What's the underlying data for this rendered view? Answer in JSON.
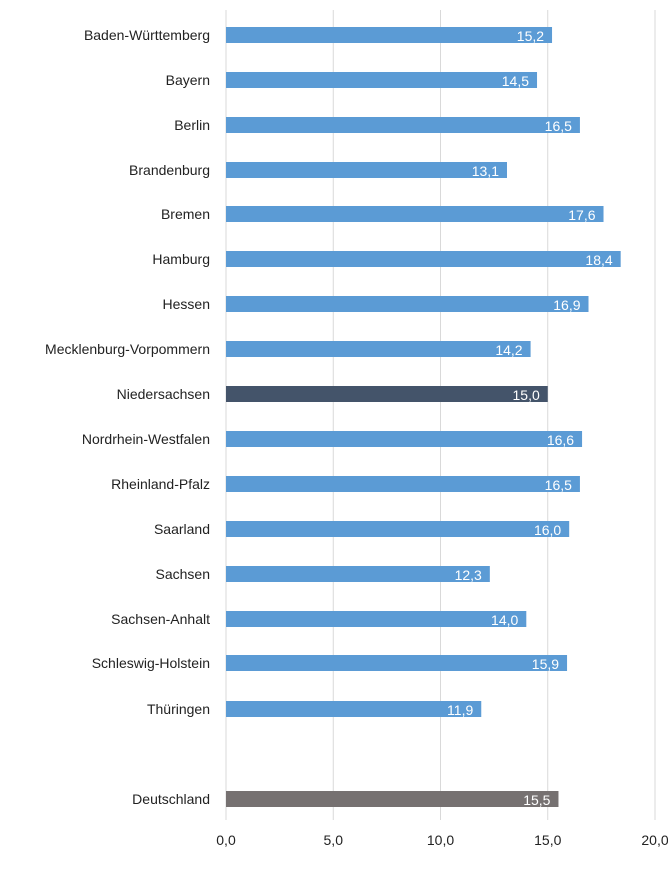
{
  "chart_data": {
    "type": "bar",
    "orientation": "horizontal",
    "categories": [
      "Baden-Württemberg",
      "Bayern",
      "Berlin",
      "Brandenburg",
      "Bremen",
      "Hamburg",
      "Hessen",
      "Mecklenburg-Vorpommern",
      "Niedersachsen",
      "Nordrhein-Westfalen",
      "Rheinland-Pfalz",
      "Saarland",
      "Sachsen",
      "Sachsen-Anhalt",
      "Schleswig-Holstein",
      "Thüringen",
      "Deutschland"
    ],
    "values": [
      15.2,
      14.5,
      16.5,
      13.1,
      17.6,
      18.4,
      16.9,
      14.2,
      15.0,
      16.6,
      16.5,
      16.0,
      12.3,
      14.0,
      15.9,
      11.9,
      15.5
    ],
    "value_labels": [
      "15,2",
      "14,5",
      "16,5",
      "13,1",
      "17,6",
      "18,4",
      "16,9",
      "14,2",
      "15,0",
      "16,6",
      "16,5",
      "16,0",
      "12,3",
      "14,0",
      "15,9",
      "11,9",
      "15,5"
    ],
    "bar_colors": [
      "#5b9bd5",
      "#5b9bd5",
      "#5b9bd5",
      "#5b9bd5",
      "#5b9bd5",
      "#5b9bd5",
      "#5b9bd5",
      "#5b9bd5",
      "#44546a",
      "#5b9bd5",
      "#5b9bd5",
      "#5b9bd5",
      "#5b9bd5",
      "#5b9bd5",
      "#5b9bd5",
      "#5b9bd5",
      "#767171"
    ],
    "xlim": [
      0,
      20
    ],
    "xticks": [
      0,
      5,
      10,
      15,
      20
    ],
    "xtick_labels": [
      "0,0",
      "5,0",
      "10,0",
      "15,0",
      "20,0"
    ],
    "grid": "vertical",
    "title": "",
    "xlabel": "",
    "ylabel": ""
  }
}
